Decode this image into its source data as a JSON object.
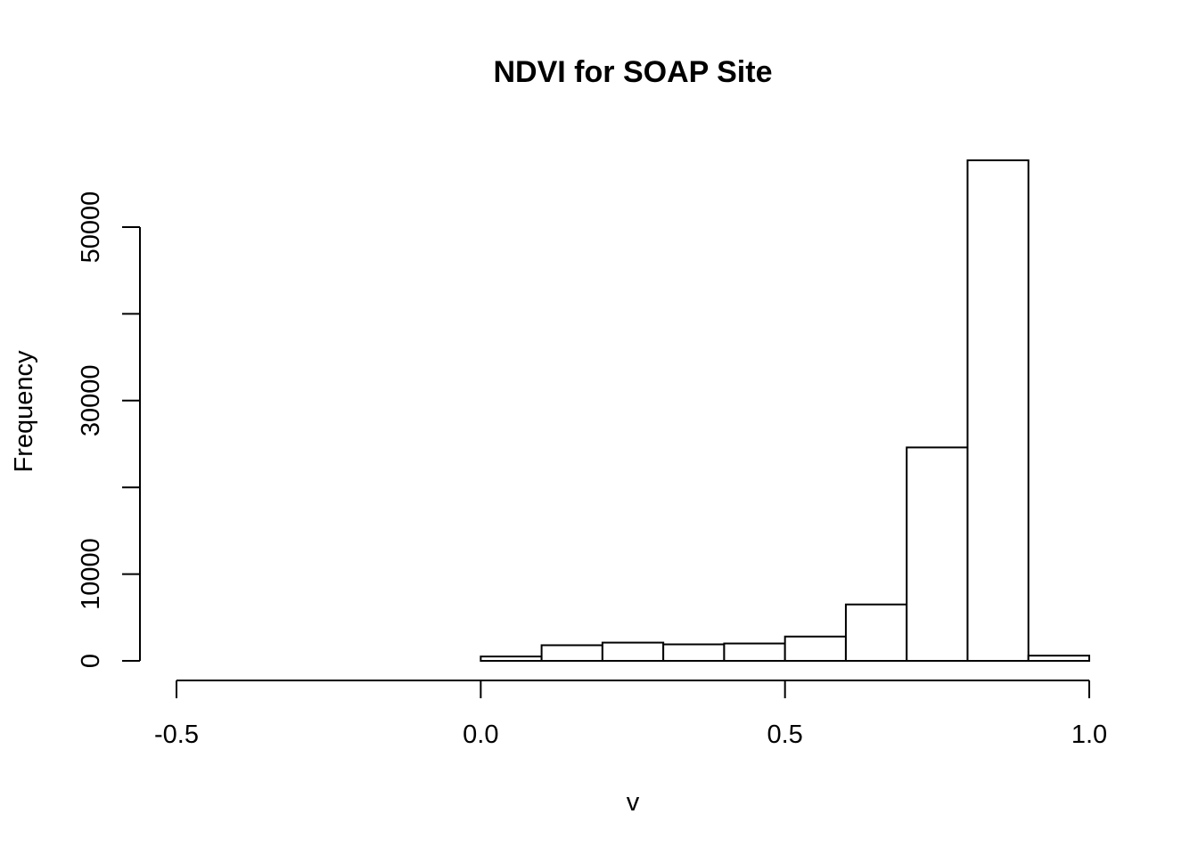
{
  "chart_data": {
    "type": "bar",
    "title": "NDVI for SOAP Site",
    "xlabel": "v",
    "ylabel": "Frequency",
    "xlim": [
      -0.5,
      1.0
    ],
    "ylim": [
      0,
      60000
    ],
    "x_ticks": [
      -0.5,
      0.0,
      0.5,
      1.0
    ],
    "x_tick_labels": [
      "-0.5",
      "0.0",
      "0.5",
      "1.0"
    ],
    "y_ticks": [
      0,
      10000,
      20000,
      30000,
      40000,
      50000
    ],
    "y_tick_labels": [
      "0",
      "10000",
      "",
      "30000",
      "",
      "50000"
    ],
    "bins": [
      {
        "x0": -0.5,
        "x1": -0.4,
        "value": 0
      },
      {
        "x0": -0.4,
        "x1": -0.3,
        "value": 0
      },
      {
        "x0": -0.3,
        "x1": -0.2,
        "value": 0
      },
      {
        "x0": -0.2,
        "x1": -0.1,
        "value": 0
      },
      {
        "x0": -0.1,
        "x1": 0.0,
        "value": 0
      },
      {
        "x0": 0.0,
        "x1": 0.1,
        "value": 500
      },
      {
        "x0": 0.1,
        "x1": 0.2,
        "value": 1800
      },
      {
        "x0": 0.2,
        "x1": 0.3,
        "value": 2100
      },
      {
        "x0": 0.3,
        "x1": 0.4,
        "value": 1900
      },
      {
        "x0": 0.4,
        "x1": 0.5,
        "value": 2000
      },
      {
        "x0": 0.5,
        "x1": 0.6,
        "value": 2800
      },
      {
        "x0": 0.6,
        "x1": 0.7,
        "value": 6500
      },
      {
        "x0": 0.7,
        "x1": 0.8,
        "value": 24600
      },
      {
        "x0": 0.8,
        "x1": 0.9,
        "value": 57700
      },
      {
        "x0": 0.9,
        "x1": 1.0,
        "value": 600
      }
    ],
    "grid": false,
    "legend": "none"
  }
}
